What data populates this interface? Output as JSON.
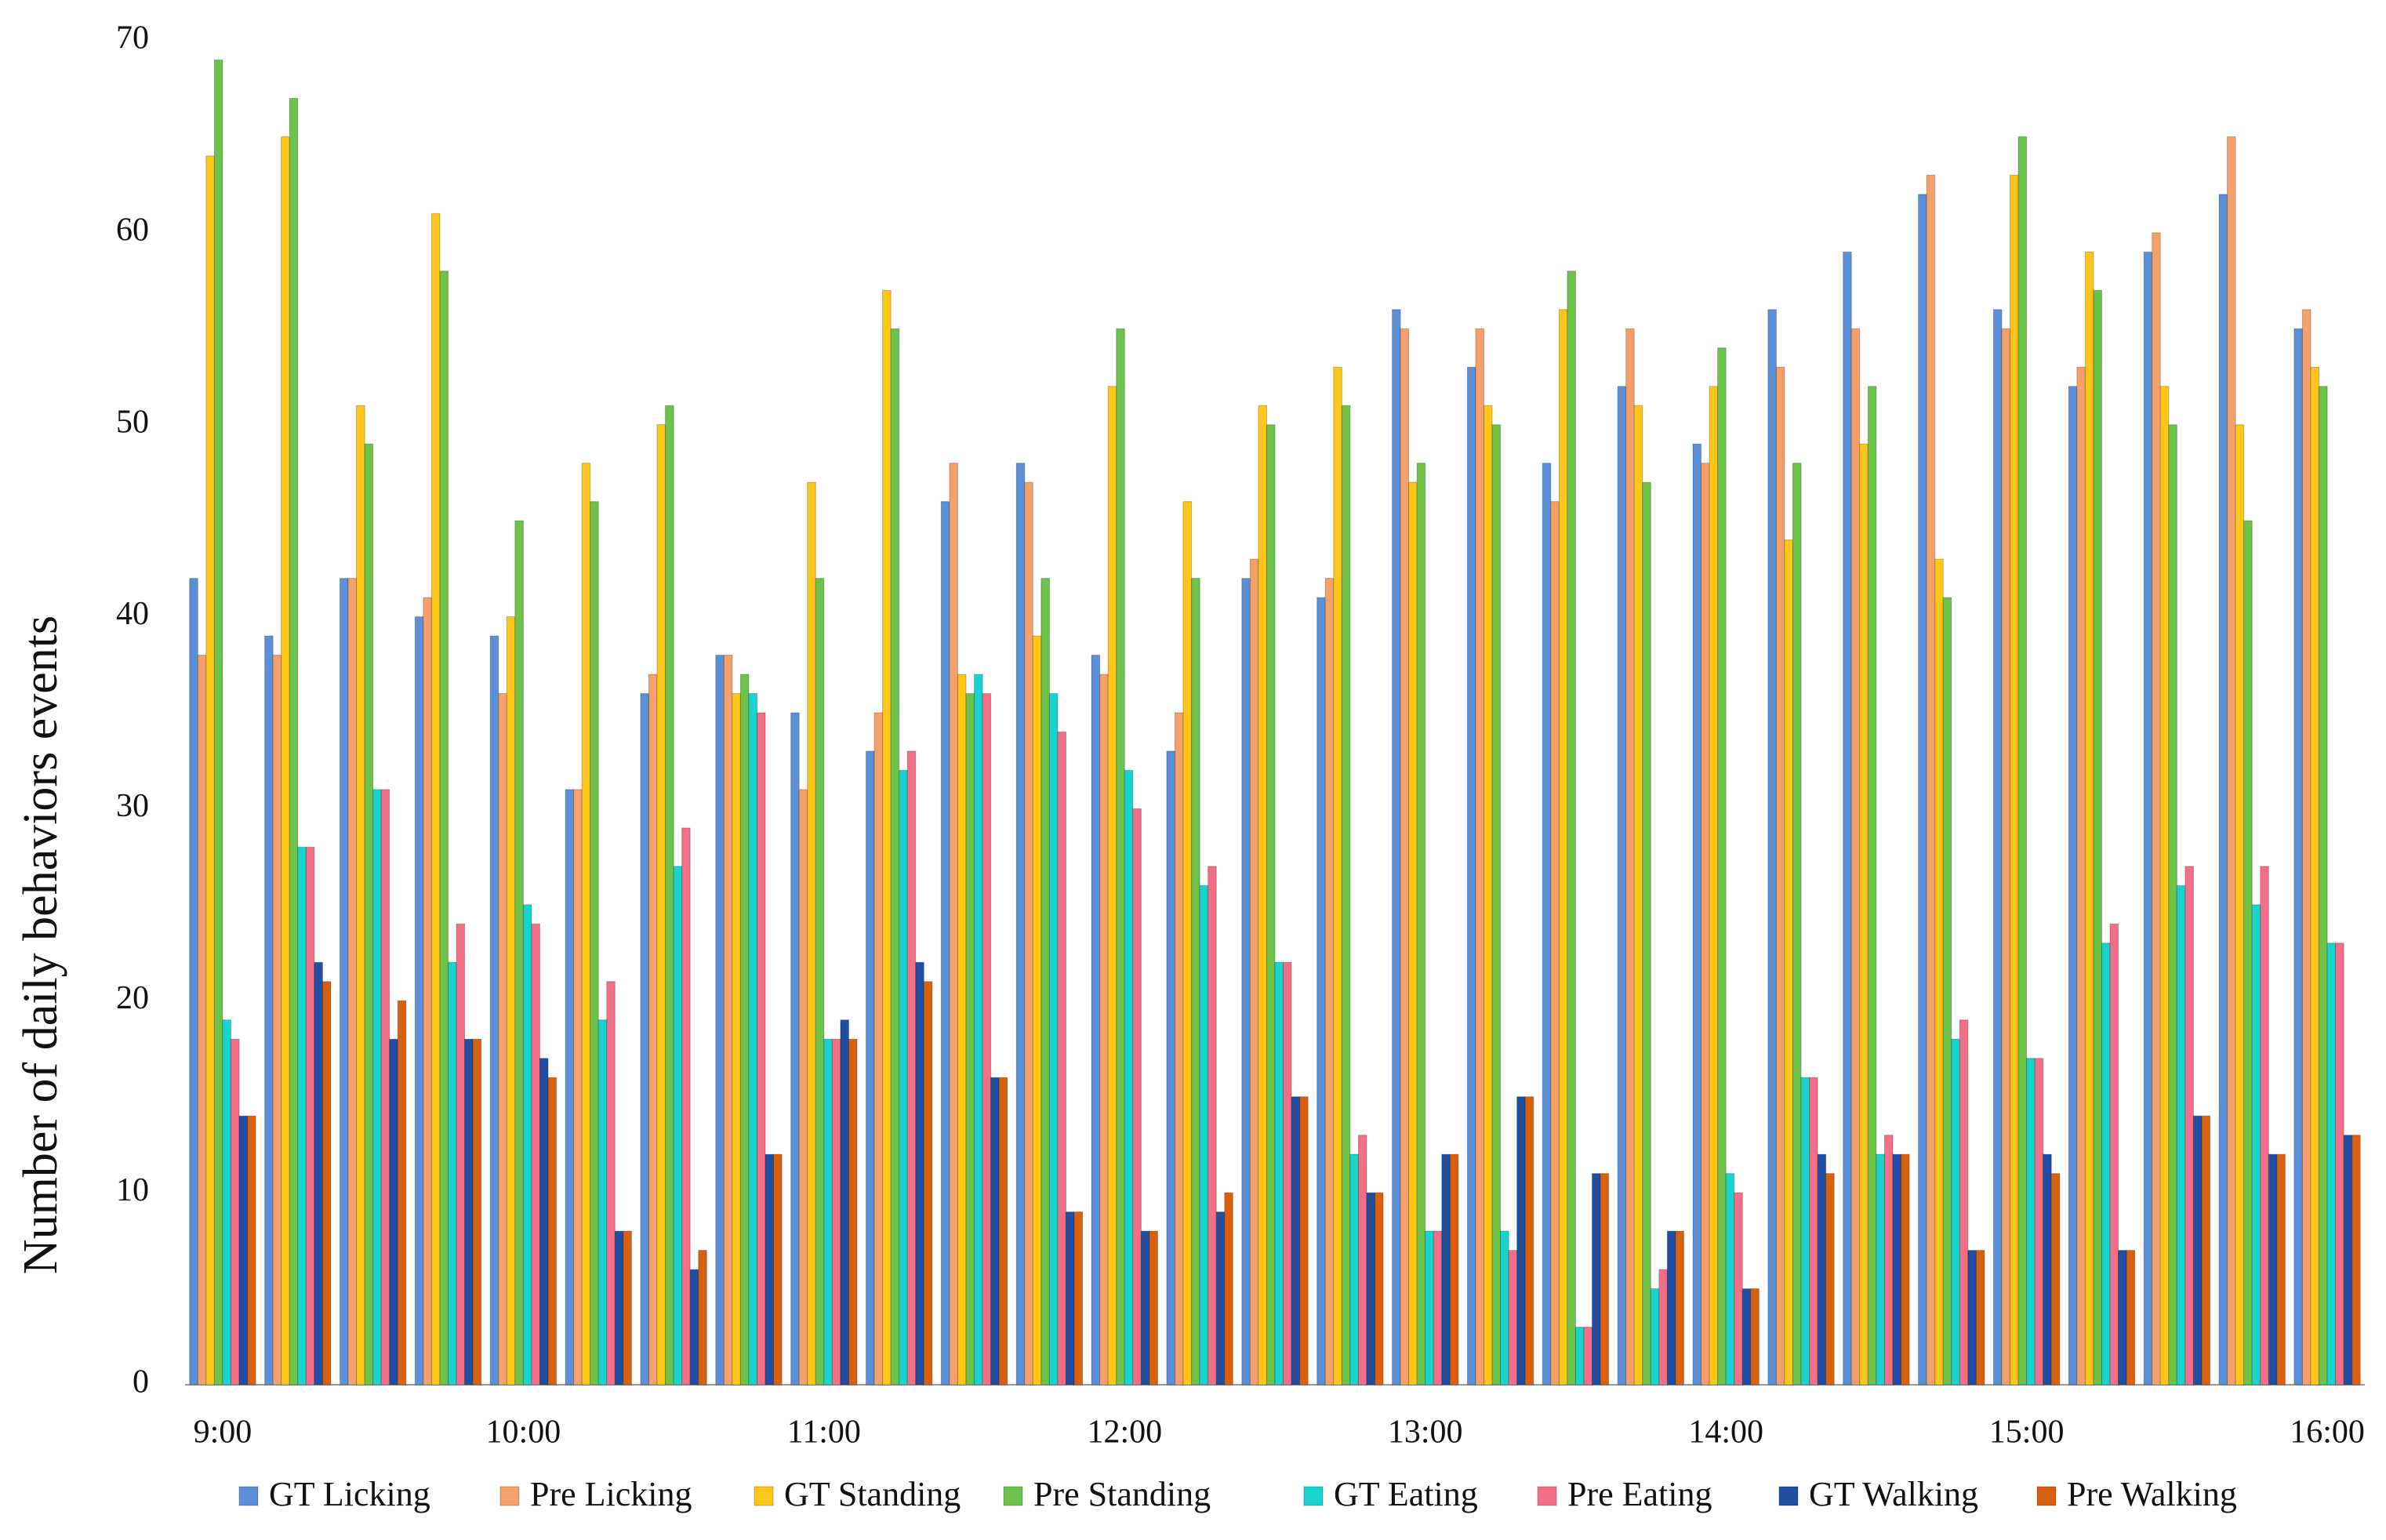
{
  "chart_data": {
    "type": "bar",
    "ylabel": "Number of daily behaviors events",
    "categories": [
      "9:00",
      null,
      null,
      null,
      "10:00",
      null,
      null,
      null,
      "11:00",
      null,
      null,
      null,
      "12:00",
      null,
      null,
      null,
      "13:00",
      null,
      null,
      null,
      "14:00",
      null,
      null,
      null,
      "15:00",
      null,
      null,
      null,
      "16:00"
    ],
    "ylim": [
      0,
      70
    ],
    "yticks": [
      0,
      10,
      20,
      30,
      40,
      50,
      60,
      70
    ],
    "grid": false,
    "legend": "bottom",
    "series": [
      {
        "name": "GT Licking",
        "color": "#5b8fd8",
        "values": [
          42,
          39,
          42,
          40,
          39,
          31,
          36,
          38,
          35,
          33,
          46,
          48,
          38,
          33,
          42,
          41,
          56,
          53,
          48,
          52,
          49,
          56,
          59,
          62,
          56,
          52,
          59,
          62,
          55
        ]
      },
      {
        "name": "Pre Licking",
        "color": "#f5a06a",
        "values": [
          38,
          38,
          42,
          41,
          36,
          31,
          37,
          38,
          31,
          35,
          48,
          47,
          37,
          35,
          43,
          42,
          55,
          55,
          46,
          55,
          48,
          53,
          55,
          63,
          55,
          53,
          60,
          65,
          56
        ]
      },
      {
        "name": "GT Standing",
        "color": "#ffc61a",
        "values": [
          64,
          65,
          51,
          61,
          40,
          48,
          50,
          36,
          47,
          57,
          37,
          39,
          52,
          46,
          51,
          53,
          47,
          51,
          56,
          51,
          52,
          44,
          49,
          43,
          63,
          59,
          52,
          50,
          53
        ]
      },
      {
        "name": "Pre Standing",
        "color": "#6cc24a",
        "values": [
          69,
          67,
          49,
          58,
          45,
          46,
          51,
          37,
          42,
          55,
          36,
          42,
          55,
          42,
          50,
          51,
          48,
          50,
          58,
          47,
          54,
          48,
          52,
          41,
          65,
          57,
          50,
          45,
          52
        ]
      },
      {
        "name": "GT Eating",
        "color": "#19d3cf",
        "values": [
          19,
          28,
          31,
          22,
          25,
          19,
          27,
          36,
          18,
          32,
          37,
          36,
          32,
          26,
          22,
          12,
          8,
          8,
          3,
          5,
          11,
          16,
          12,
          18,
          17,
          23,
          26,
          25,
          23
        ]
      },
      {
        "name": "Pre Eating",
        "color": "#f36f86",
        "values": [
          18,
          28,
          31,
          24,
          24,
          21,
          29,
          35,
          18,
          33,
          36,
          34,
          30,
          27,
          22,
          13,
          8,
          7,
          3,
          6,
          10,
          16,
          13,
          19,
          17,
          24,
          27,
          27,
          23
        ]
      },
      {
        "name": "GT Walking",
        "color": "#1f4ea3",
        "values": [
          14,
          22,
          18,
          18,
          17,
          8,
          6,
          12,
          19,
          22,
          16,
          9,
          8,
          9,
          15,
          10,
          12,
          15,
          11,
          8,
          5,
          12,
          12,
          7,
          12,
          7,
          14,
          12,
          13
        ]
      },
      {
        "name": "Pre Walking",
        "color": "#d9600e",
        "values": [
          14,
          21,
          20,
          18,
          16,
          8,
          7,
          12,
          18,
          21,
          16,
          9,
          8,
          10,
          15,
          10,
          12,
          15,
          11,
          8,
          5,
          11,
          12,
          7,
          11,
          7,
          14,
          12,
          13
        ]
      }
    ]
  }
}
